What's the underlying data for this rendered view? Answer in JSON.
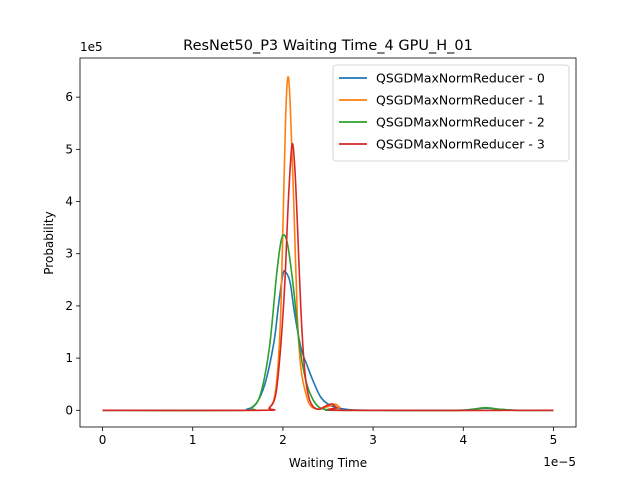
{
  "chart_data": {
    "type": "line",
    "title": "ResNet50_P3 Waiting Time_4 GPU_H_01",
    "xlabel": "Waiting Time",
    "ylabel": "Probability",
    "x_offset_label": "1e−5",
    "y_offset_label": "1e5",
    "xlim": [
      -0.25,
      5.25
    ],
    "ylim": [
      -0.32,
      6.75
    ],
    "x_ticks": [
      0,
      1,
      2,
      3,
      4,
      5
    ],
    "x_tick_labels": [
      "0",
      "1",
      "2",
      "3",
      "4",
      "5"
    ],
    "y_ticks": [
      0,
      1,
      2,
      3,
      4,
      5,
      6
    ],
    "y_tick_labels": [
      "0",
      "1",
      "2",
      "3",
      "4",
      "5",
      "6"
    ],
    "grid": false,
    "legend_position": "top-right",
    "series": [
      {
        "name": "QSGDMaxNormReducer - 0",
        "color": "#1f77b4",
        "points": [
          [
            0,
            0
          ],
          [
            1.5,
            0
          ],
          [
            1.6,
            0.02
          ],
          [
            1.7,
            0.12
          ],
          [
            1.8,
            0.5
          ],
          [
            1.9,
            1.3
          ],
          [
            1.95,
            2.0
          ],
          [
            2.0,
            2.6
          ],
          [
            2.03,
            2.65
          ],
          [
            2.08,
            2.45
          ],
          [
            2.13,
            1.85
          ],
          [
            2.2,
            1.2
          ],
          [
            2.27,
            0.85
          ],
          [
            2.35,
            0.5
          ],
          [
            2.42,
            0.25
          ],
          [
            2.5,
            0.12
          ],
          [
            2.6,
            0.05
          ],
          [
            2.75,
            0.01
          ],
          [
            3.0,
            0
          ],
          [
            3.9,
            0
          ],
          [
            4.1,
            0.02
          ],
          [
            4.25,
            0.04
          ],
          [
            4.4,
            0.02
          ],
          [
            4.6,
            0
          ],
          [
            5,
            0
          ]
        ]
      },
      {
        "name": "QSGDMaxNormReducer - 1",
        "color": "#ff7f0e",
        "points": [
          [
            0,
            0
          ],
          [
            1.7,
            0
          ],
          [
            1.85,
            0.05
          ],
          [
            1.92,
            0.4
          ],
          [
            1.97,
            1.6
          ],
          [
            2.0,
            3.5
          ],
          [
            2.03,
            5.6
          ],
          [
            2.055,
            6.38
          ],
          [
            2.08,
            5.9
          ],
          [
            2.12,
            4.0
          ],
          [
            2.16,
            1.8
          ],
          [
            2.2,
            0.8
          ],
          [
            2.25,
            0.35
          ],
          [
            2.3,
            0.1
          ],
          [
            2.38,
            0.02
          ],
          [
            2.45,
            0.05
          ],
          [
            2.52,
            0.08
          ],
          [
            2.58,
            0.12
          ],
          [
            2.63,
            0.06
          ],
          [
            2.72,
            0
          ],
          [
            5,
            0
          ]
        ]
      },
      {
        "name": "QSGDMaxNormReducer - 2",
        "color": "#2ca02c",
        "points": [
          [
            0,
            0
          ],
          [
            1.55,
            0
          ],
          [
            1.65,
            0.05
          ],
          [
            1.75,
            0.3
          ],
          [
            1.85,
            1.2
          ],
          [
            1.93,
            2.6
          ],
          [
            1.98,
            3.25
          ],
          [
            2.02,
            3.35
          ],
          [
            2.06,
            3.1
          ],
          [
            2.12,
            2.3
          ],
          [
            2.18,
            1.3
          ],
          [
            2.25,
            0.6
          ],
          [
            2.32,
            0.25
          ],
          [
            2.4,
            0.06
          ],
          [
            2.5,
            0.01
          ],
          [
            2.6,
            0
          ],
          [
            3.9,
            0
          ],
          [
            4.1,
            0.02
          ],
          [
            4.25,
            0.05
          ],
          [
            4.4,
            0.02
          ],
          [
            4.6,
            0
          ],
          [
            5,
            0
          ]
        ]
      },
      {
        "name": "QSGDMaxNormReducer - 3",
        "color": "#d62728",
        "points": [
          [
            0,
            0
          ],
          [
            1.75,
            0
          ],
          [
            1.85,
            0.05
          ],
          [
            1.92,
            0.3
          ],
          [
            1.97,
            1.1
          ],
          [
            2.02,
            2.4
          ],
          [
            2.06,
            4.0
          ],
          [
            2.1,
            5.08
          ],
          [
            2.13,
            4.7
          ],
          [
            2.16,
            3.6
          ],
          [
            2.2,
            1.9
          ],
          [
            2.24,
            0.8
          ],
          [
            2.28,
            0.3
          ],
          [
            2.33,
            0.08
          ],
          [
            2.4,
            0.02
          ],
          [
            2.45,
            0.06
          ],
          [
            2.5,
            0.1
          ],
          [
            2.55,
            0.12
          ],
          [
            2.6,
            0.05
          ],
          [
            2.7,
            0
          ],
          [
            5,
            0
          ]
        ]
      }
    ]
  }
}
